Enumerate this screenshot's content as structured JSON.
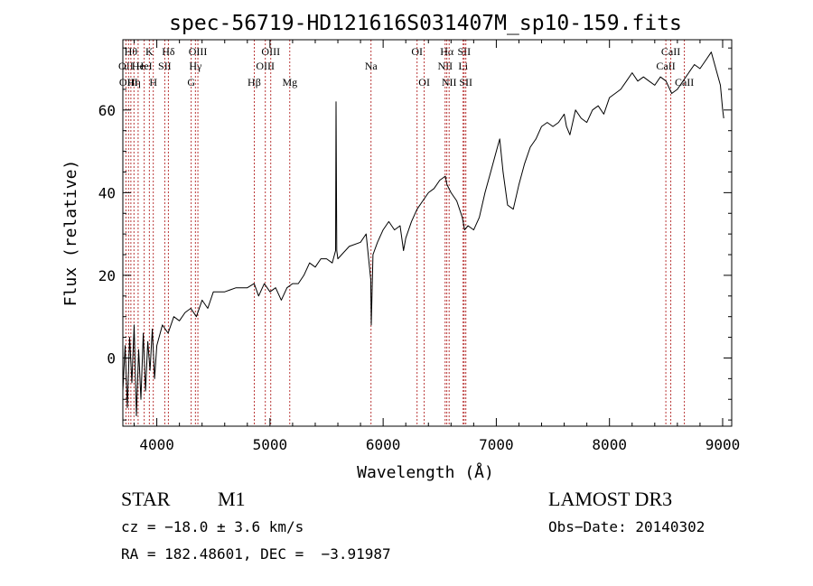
{
  "chart_data": {
    "type": "line",
    "title": "spec-56719-HD121616S031407M_sp10-159.fits",
    "xlabel": "Wavelength (Å)",
    "ylabel": "Flux (relative)",
    "xlim": [
      3700,
      9080
    ],
    "ylim": [
      -16.5,
      77
    ],
    "xticks": [
      4000,
      5000,
      6000,
      7000,
      8000,
      9000
    ],
    "yticks": [
      0,
      20,
      40,
      60
    ],
    "grid": false,
    "series": [
      {
        "name": "spectrum",
        "x": [
          3700,
          3720,
          3740,
          3760,
          3780,
          3800,
          3820,
          3840,
          3860,
          3880,
          3900,
          3920,
          3940,
          3960,
          3980,
          4000,
          4050,
          4100,
          4150,
          4200,
          4250,
          4300,
          4350,
          4400,
          4450,
          4500,
          4600,
          4700,
          4800,
          4860,
          4900,
          4950,
          5000,
          5050,
          5100,
          5150,
          5200,
          5250,
          5300,
          5350,
          5400,
          5450,
          5500,
          5550,
          5580,
          5584,
          5590,
          5600,
          5700,
          5800,
          5850,
          5890,
          5895,
          5910,
          5950,
          6000,
          6050,
          6100,
          6150,
          6180,
          6200,
          6250,
          6300,
          6350,
          6400,
          6450,
          6500,
          6550,
          6563,
          6600,
          6650,
          6700,
          6720,
          6750,
          6800,
          6850,
          6900,
          6950,
          7000,
          7030,
          7060,
          7100,
          7150,
          7200,
          7250,
          7300,
          7350,
          7400,
          7450,
          7500,
          7550,
          7600,
          7620,
          7650,
          7700,
          7750,
          7800,
          7850,
          7900,
          7950,
          8000,
          8050,
          8100,
          8150,
          8200,
          8250,
          8300,
          8350,
          8400,
          8450,
          8500,
          8550,
          8600,
          8650,
          8700,
          8750,
          8800,
          8850,
          8900,
          8950,
          8980,
          9000,
          9010
        ],
        "y": [
          -8,
          3,
          -12,
          5,
          -6,
          8,
          -14,
          2,
          -10,
          6,
          -8,
          4,
          -3,
          7,
          -5,
          3,
          8,
          6,
          10,
          9,
          11,
          12,
          10,
          14,
          12,
          16,
          16,
          17,
          17,
          18,
          15,
          18,
          16,
          17,
          14,
          17,
          18,
          18,
          20,
          23,
          22,
          24,
          24,
          23,
          26,
          62,
          26,
          24,
          27,
          28,
          30,
          19,
          8,
          25,
          28,
          31,
          33,
          31,
          32,
          26,
          29,
          33,
          36,
          38,
          40,
          41,
          43,
          44,
          42,
          40,
          38,
          34,
          31,
          32,
          31,
          34,
          40,
          45,
          50,
          53,
          45,
          37,
          36,
          42,
          47,
          51,
          53,
          56,
          57,
          56,
          57,
          59,
          56,
          54,
          60,
          58,
          57,
          60,
          61,
          59,
          63,
          64,
          65,
          67,
          69,
          67,
          68,
          67,
          66,
          68,
          67,
          64,
          65,
          67,
          69,
          71,
          70,
          72,
          74,
          69,
          66,
          60,
          58
        ]
      }
    ],
    "lines": [
      {
        "x": 3727,
        "label": "OII",
        "row": 1
      },
      {
        "x": 3750,
        "label": "OIII",
        "row": 2
      },
      {
        "x": 3771,
        "label": "Hθ",
        "row": 0
      },
      {
        "x": 3798,
        "label": "Hη",
        "row": 2
      },
      {
        "x": 3835,
        "label": "He",
        "row": 1
      },
      {
        "x": 3889,
        "label": "HeI",
        "row": 1
      },
      {
        "x": 3934,
        "label": "K",
        "row": 0
      },
      {
        "x": 3969,
        "label": "H",
        "row": 2
      },
      {
        "x": 4070,
        "label": "SII",
        "row": 1
      },
      {
        "x": 4102,
        "label": "Hδ",
        "row": 0
      },
      {
        "x": 4304,
        "label": "G",
        "row": 2
      },
      {
        "x": 4341,
        "label": "Hγ",
        "row": 1
      },
      {
        "x": 4363,
        "label": "OIII",
        "row": 0
      },
      {
        "x": 4861,
        "label": "Hβ",
        "row": 2
      },
      {
        "x": 4959,
        "label": "OIII",
        "row": 1
      },
      {
        "x": 5007,
        "label": "OIII",
        "row": 0
      },
      {
        "x": 5175,
        "label": "Mg",
        "row": 2
      },
      {
        "x": 5893,
        "label": "Na",
        "row": 1
      },
      {
        "x": 6300,
        "label": "OI",
        "row": 0
      },
      {
        "x": 6363,
        "label": "OI",
        "row": 2
      },
      {
        "x": 6548,
        "label": "NII",
        "row": 1
      },
      {
        "x": 6563,
        "label": "Hα",
        "row": 0
      },
      {
        "x": 6583,
        "label": "NII",
        "row": 2
      },
      {
        "x": 6707,
        "label": "Li",
        "row": 1
      },
      {
        "x": 6716,
        "label": "SII",
        "row": 0
      },
      {
        "x": 6731,
        "label": "SII",
        "row": 2
      },
      {
        "x": 8498,
        "label": "CaII",
        "row": 1
      },
      {
        "x": 8542,
        "label": "CaII",
        "row": 0
      },
      {
        "x": 8662,
        "label": "CaII",
        "row": 2
      }
    ]
  },
  "info": {
    "class": "STAR",
    "subclass": "M1",
    "survey": "LAMOST DR3",
    "cz": "cz = −18.0 ± 3.6 km/s",
    "obs_date": "Obs−Date: 20140302",
    "coords": "RA = 182.48601, DEC =  −3.91987"
  },
  "colors": {
    "spectrum": "#000000",
    "line_markers": "#b22222",
    "axes": "#000000",
    "background": "#ffffff"
  }
}
